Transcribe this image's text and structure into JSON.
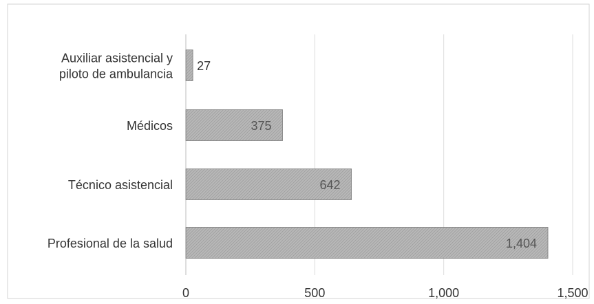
{
  "chart_data": {
    "type": "bar",
    "orientation": "horizontal",
    "title": "",
    "xlabel": "",
    "ylabel": "",
    "categories": [
      "Auxiliar asistencial y piloto de ambulancia",
      "Médicos",
      "Técnico asistencial",
      "Profesional de la salud"
    ],
    "category_label_lines": [
      [
        "Auxiliar asistencial y",
        "piloto de ambulancia"
      ],
      [
        "Médicos"
      ],
      [
        "Técnico asistencial"
      ],
      [
        "Profesional de la salud"
      ]
    ],
    "values": [
      27,
      375,
      642,
      1404
    ],
    "value_labels": [
      "27",
      "375",
      "642",
      "1,404"
    ],
    "xlim": [
      0,
      1500
    ],
    "x_ticks": [
      0,
      500,
      1000,
      1500
    ],
    "x_tick_labels": [
      "0",
      "500",
      "1,000",
      "1,500"
    ],
    "grid": "vertical",
    "legend": "none",
    "colors": {
      "bar_fill": "#b3b3b3",
      "bar_hatch": "#8f8f8f",
      "bar_border": "#7a7a7a",
      "gridline": "#dcdcdc",
      "frame": "#d0d0d0",
      "label_text": "#333333",
      "value_text_inside": "#555555"
    }
  }
}
